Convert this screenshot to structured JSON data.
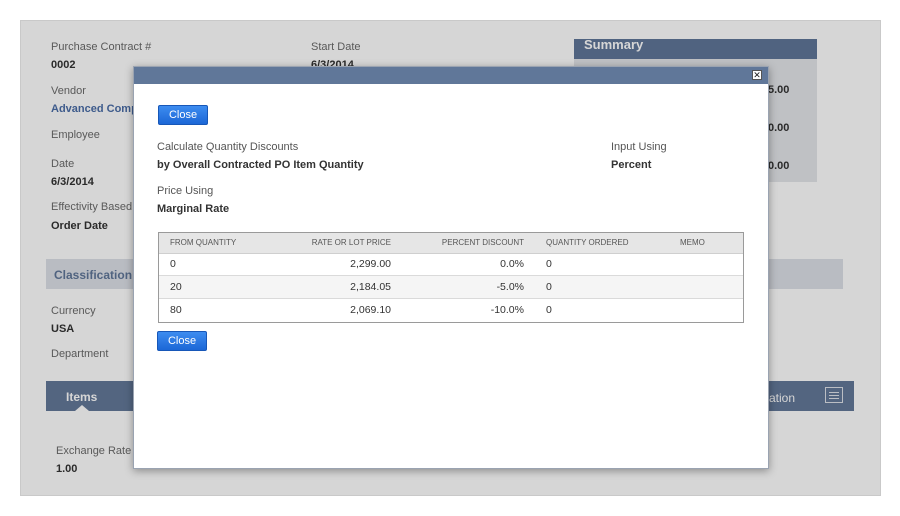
{
  "background_form": {
    "purchase_contract_label": "Purchase Contract #",
    "purchase_contract_value": "0002",
    "start_date_label": "Start Date",
    "start_date_value": "6/3/2014",
    "vendor_label": "Vendor",
    "vendor_value": "Advanced Comp",
    "employee_label": "Employee",
    "date_label": "Date",
    "date_value": "6/3/2014",
    "effectivity_label": "Effectivity Based C",
    "effectivity_value": "Order Date",
    "classification_title": "Classification",
    "currency_label": "Currency",
    "currency_value": "USA",
    "department_label": "Department",
    "items_tab": "Items",
    "information_tab_partial": "mation",
    "exchange_rate_label": "Exchange Rate",
    "exchange_rate_value": "1.00",
    "summary_title": "Summary",
    "summary_amounts": [
      "5.00",
      "0.00",
      "0.00"
    ]
  },
  "modal": {
    "close_label": "Close",
    "calc_label": "Calculate Quantity Discounts",
    "calc_value": "by Overall Contracted PO Item Quantity",
    "input_using_label": "Input Using",
    "input_using_value": "Percent",
    "price_using_label": "Price Using",
    "price_using_value": "Marginal Rate",
    "table": {
      "headers": [
        "FROM QUANTITY",
        "RATE OR LOT PRICE",
        "PERCENT DISCOUNT",
        "QUANTITY ORDERED",
        "MEMO"
      ],
      "rows": [
        {
          "from_quantity": "0",
          "rate": "2,299.00",
          "percent": "0.0%",
          "qty_ordered": "0",
          "memo": ""
        },
        {
          "from_quantity": "20",
          "rate": "2,184.05",
          "percent": "-5.0%",
          "qty_ordered": "0",
          "memo": ""
        },
        {
          "from_quantity": "80",
          "rate": "2,069.10",
          "percent": "-10.0%",
          "qty_ordered": "0",
          "memo": ""
        }
      ]
    }
  }
}
